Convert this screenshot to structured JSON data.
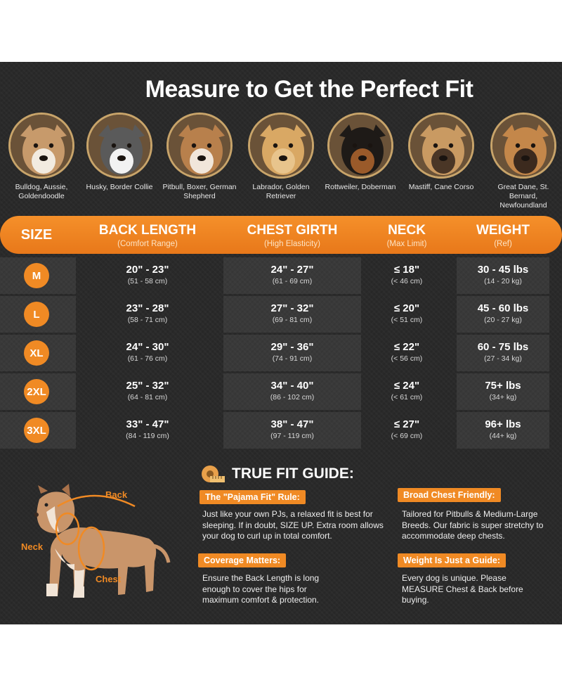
{
  "title": "Measure to Get the Perfect Fit",
  "dogs": [
    {
      "caption": "Bulldog, Aussie, Goldendoodle",
      "colors": [
        "#c79a6b",
        "#f2ebe0"
      ],
      "icon": "bulldog-face-icon"
    },
    {
      "caption": "Husky, Border Collie",
      "colors": [
        "#5a5a5a",
        "#f2f2f2"
      ],
      "icon": "husky-face-icon"
    },
    {
      "caption": "Pitbull, Boxer, German Shepherd",
      "colors": [
        "#b8804c",
        "#f1e6da"
      ],
      "icon": "pitbull-face-icon"
    },
    {
      "caption": "Labrador, Golden Retriever",
      "colors": [
        "#d9a864",
        "#e8c48c"
      ],
      "icon": "labrador-face-icon"
    },
    {
      "caption": "Rottweiler, Doberman",
      "colors": [
        "#1e1a17",
        "#9a5a2a"
      ],
      "icon": "rottweiler-face-icon"
    },
    {
      "caption": "Mastiff, Cane Corso",
      "colors": [
        "#c99a62",
        "#4a3626"
      ],
      "icon": "mastiff-face-icon"
    },
    {
      "caption": "Great Dane, St. Bernard, Newfoundland",
      "colors": [
        "#c4874a",
        "#3c2a1e"
      ],
      "icon": "great-dane-face-icon"
    }
  ],
  "table": {
    "headers": {
      "size": "SIZE",
      "back": {
        "label": "BACK LENGTH",
        "sub": "(Comfort Range)"
      },
      "chest": {
        "label": "CHEST GIRTH",
        "sub": "(High Elasticity)"
      },
      "neck": {
        "label": "NECK",
        "sub": "(Max Limit)"
      },
      "weight": {
        "label": "WEIGHT",
        "sub": "(Ref)"
      }
    },
    "rows": [
      {
        "size": "M",
        "back": "20\" - 23\"",
        "back_cm": "(51 - 58 cm)",
        "chest": "24\" - 27\"",
        "chest_cm": "(61 - 69 cm)",
        "neck": "≤ 18\"",
        "neck_cm": "(< 46 cm)",
        "weight": "30 - 45 lbs",
        "weight_kg": "(14 - 20 kg)"
      },
      {
        "size": "L",
        "back": "23\" - 28\"",
        "back_cm": "(58 - 71 cm)",
        "chest": "27\" - 32\"",
        "chest_cm": "(69 - 81 cm)",
        "neck": "≤ 20\"",
        "neck_cm": "(< 51 cm)",
        "weight": "45 - 60 lbs",
        "weight_kg": "(20 - 27 kg)"
      },
      {
        "size": "XL",
        "back": "24\" - 30\"",
        "back_cm": "(61 - 76 cm)",
        "chest": "29\" - 36\"",
        "chest_cm": "(74 - 91 cm)",
        "neck": "≤ 22\"",
        "neck_cm": "(< 56 cm)",
        "weight": "60 - 75 lbs",
        "weight_kg": "(27 - 34 kg)"
      },
      {
        "size": "2XL",
        "back": "25\" - 32\"",
        "back_cm": "(64 - 81 cm)",
        "chest": "34\" - 40\"",
        "chest_cm": "(86 - 102 cm)",
        "neck": "≤ 24\"",
        "neck_cm": "(< 61 cm)",
        "weight": "75+ lbs",
        "weight_kg": "(34+ kg)"
      },
      {
        "size": "3XL",
        "back": "33\" - 47\"",
        "back_cm": "(84 - 119 cm)",
        "chest": "38\" - 47\"",
        "chest_cm": "(97 - 119 cm)",
        "neck": "≤ 27\"",
        "neck_cm": "(< 69 cm)",
        "weight": "96+ lbs",
        "weight_kg": "(44+ kg)"
      }
    ]
  },
  "guide": {
    "title": "TRUE FIT GUIDE:",
    "labels": {
      "back": "Back",
      "neck": "Neck",
      "chest": "Chest"
    },
    "items": [
      {
        "tag": "The \"Pajama Fit\" Rule:",
        "text": "Just like your own PJs, a relaxed fit is best for sleeping. If in doubt, SIZE UP. Extra room allows your dog to curl up in total comfort."
      },
      {
        "tag": "Broad Chest Friendly:",
        "text": "Tailored for Pitbulls & Medium-Large Breeds. Our fabric is super stretchy to accommodate deep chests."
      },
      {
        "tag": "Coverage Matters:",
        "text": "Ensure the Back Length is long enough to cover the hips for maximum comfort & protection."
      },
      {
        "tag": "Weight Is Just a Guide:",
        "text": "Every dog is unique. Please MEASURE Chest & Back before buying."
      }
    ]
  },
  "colors": {
    "accent": "#f08a24",
    "panel": "#2a2a2a"
  }
}
